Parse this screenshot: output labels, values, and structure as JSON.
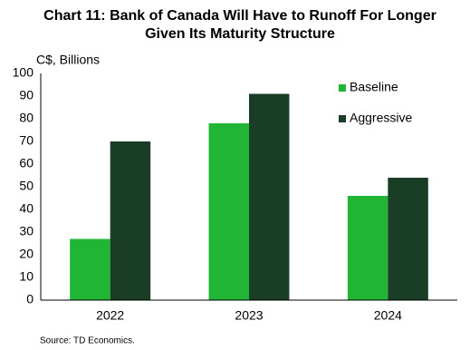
{
  "chart_data": {
    "type": "bar",
    "title": [
      "Chart 11: Bank of Canada Will Have to Runoff For Longer",
      "Given Its Maturity Structure"
    ],
    "y_label": "C$, Billions",
    "categories": [
      "2022",
      "2023",
      "2024"
    ],
    "series": [
      {
        "name": "Baseline",
        "color": "#21b536",
        "values": [
          27,
          78,
          46
        ]
      },
      {
        "name": "Aggressive",
        "color": "#1a3d25",
        "values": [
          70,
          91,
          54
        ]
      }
    ],
    "ylim": [
      0,
      100
    ],
    "yticks": [
      0,
      10,
      20,
      30,
      40,
      50,
      60,
      70,
      80,
      90,
      100
    ],
    "grid": false,
    "legend": "top-right",
    "source": "Source: TD Economics."
  }
}
